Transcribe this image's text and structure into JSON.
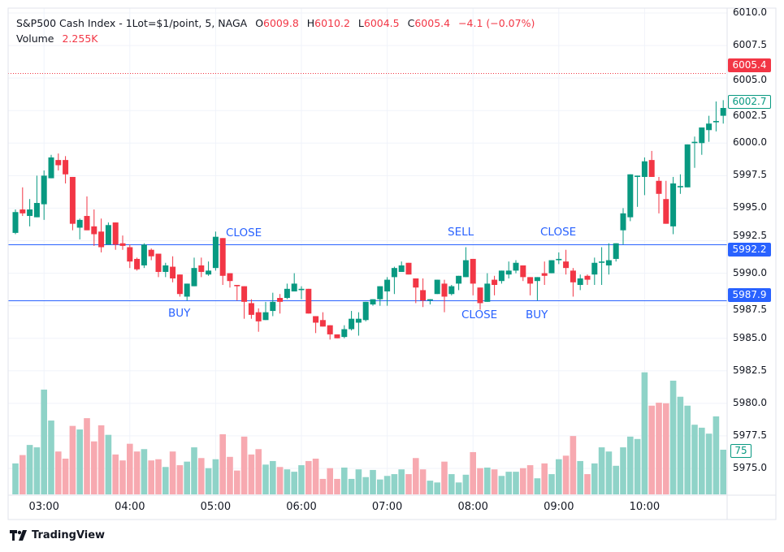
{
  "legend": {
    "symbol": "S&P500 Cash Index - 1Lot=$1/point, 5, NAGA",
    "o_label": "O",
    "o": "6009.8",
    "h_label": "H",
    "h": "6010.2",
    "l_label": "L",
    "l": "6004.5",
    "c_label": "C",
    "c": "6005.4",
    "change": "−4.1 (−0.07%)",
    "volume_label": "Volume",
    "volume": "2.255K"
  },
  "colors": {
    "up": "#089981",
    "down": "#f23645",
    "line": "#2962ff",
    "up_volume": "#8fd3c8",
    "down_volume": "#f7a9b0"
  },
  "annotations": [
    "CLOSE",
    "BUY",
    "SELL",
    "CLOSE",
    "BUY",
    "CLOSE"
  ],
  "price_labels": {
    "last": "6005.4",
    "current": "6002.7",
    "line_upper": "5992.2",
    "line_lower": "5987.9",
    "volume_last": "75"
  },
  "branding": {
    "logo": "TradingView"
  },
  "chart_data": {
    "type": "candlestick",
    "y_ticks": [
      "6010.0",
      "6007.5",
      "6005.0",
      "6002.5",
      "6000.0",
      "5997.5",
      "5995.0",
      "5992.5",
      "5990.0",
      "5987.5",
      "5985.0",
      "5982.5",
      "5980.0",
      "5977.5",
      "5975.0"
    ],
    "ylim": [
      5975.0,
      6010.0
    ],
    "x_ticks": [
      "03:00",
      "04:00",
      "05:00",
      "06:00",
      "07:00",
      "08:00",
      "09:00",
      "10:00"
    ],
    "grid": true,
    "horizontal_lines": [
      {
        "price": 6005.4,
        "style": "dotted",
        "color": "#f23645"
      },
      {
        "price": 5992.2,
        "style": "solid",
        "color": "#2962ff"
      },
      {
        "price": 5987.9,
        "style": "solid",
        "color": "#2962ff"
      }
    ],
    "ohlc": [
      [
        5993.1,
        5994.9,
        5993.0,
        5994.7
      ],
      [
        5994.9,
        5996.6,
        5994.4,
        5994.6
      ],
      [
        5994.4,
        5995.7,
        5993.6,
        5994.9
      ],
      [
        5994.3,
        5997.5,
        5994.3,
        5995.4
      ],
      [
        5995.3,
        5997.9,
        5994.1,
        5997.5
      ],
      [
        5997.3,
        5999.1,
        5997.3,
        5998.9
      ],
      [
        5998.7,
        5999.2,
        5997.9,
        5998.3
      ],
      [
        5998.7,
        5999.0,
        5996.9,
        5997.6
      ],
      [
        5997.4,
        5997.4,
        5993.3,
        5993.8
      ],
      [
        5993.5,
        5994.2,
        5992.6,
        5994.1
      ],
      [
        5994.4,
        5995.9,
        5993.3,
        5993.3
      ],
      [
        5993.6,
        5994.9,
        5992.1,
        5993.0
      ],
      [
        5993.2,
        5994.2,
        5991.6,
        5992.0
      ],
      [
        5992.2,
        5993.9,
        5992.2,
        5993.7
      ],
      [
        5993.9,
        5993.9,
        5991.8,
        5992.2
      ],
      [
        5992.3,
        5992.9,
        5991.8,
        5992.1
      ],
      [
        5992.0,
        5992.2,
        5990.4,
        5990.9
      ],
      [
        5991.1,
        5991.2,
        5990.2,
        5990.3
      ],
      [
        5990.6,
        5992.3,
        5990.4,
        5992.2
      ],
      [
        5991.8,
        5991.9,
        5991.0,
        5991.3
      ],
      [
        5991.5,
        5991.5,
        5989.7,
        5990.1
      ],
      [
        5990.1,
        5990.8,
        5989.7,
        5990.6
      ],
      [
        5990.5,
        5991.3,
        5989.3,
        5989.6
      ],
      [
        5989.9,
        5989.9,
        5988.2,
        5988.4
      ],
      [
        5988.2,
        5989.2,
        5987.9,
        5989.2
      ],
      [
        5989.0,
        5991.2,
        5989.0,
        5990.4
      ],
      [
        5990.6,
        5991.2,
        5989.7,
        5990.1
      ],
      [
        5989.9,
        5990.9,
        5989.8,
        5990.2
      ],
      [
        5990.4,
        5993.2,
        5990.2,
        5992.8
      ],
      [
        5992.7,
        5992.7,
        5989.1,
        5989.8
      ],
      [
        5990.0,
        5990.0,
        5988.9,
        5989.4
      ],
      [
        5989.1,
        5989.1,
        5987.9,
        5989.0
      ],
      [
        5989.0,
        5989.0,
        5986.5,
        5987.8
      ],
      [
        5987.7,
        5988.0,
        5986.5,
        5986.8
      ],
      [
        5987.0,
        5987.3,
        5985.5,
        5986.3
      ],
      [
        5986.4,
        5987.8,
        5986.4,
        5987.0
      ],
      [
        5987.1,
        5988.5,
        5986.7,
        5987.8
      ],
      [
        5988.1,
        5988.4,
        5986.9,
        5987.8
      ],
      [
        5988.1,
        5989.2,
        5988.0,
        5988.8
      ],
      [
        5988.6,
        5990.0,
        5988.6,
        5989.2
      ],
      [
        5988.7,
        5989.0,
        5988.0,
        5988.8
      ],
      [
        5988.8,
        5988.8,
        5986.9,
        5986.9
      ],
      [
        5986.7,
        5986.7,
        5985.4,
        5986.2
      ],
      [
        5986.4,
        5987.0,
        5985.9,
        5985.9
      ],
      [
        5986.0,
        5986.0,
        5984.9,
        5985.3
      ],
      [
        5985.3,
        5985.3,
        5985.0,
        5985.0
      ],
      [
        5985.1,
        5986.0,
        5985.0,
        5985.7
      ],
      [
        5985.7,
        5987.1,
        5985.6,
        5986.5
      ],
      [
        5986.2,
        5987.0,
        5985.2,
        5986.5
      ],
      [
        5986.4,
        5987.8,
        5986.3,
        5987.8
      ],
      [
        5987.6,
        5988.0,
        5987.5,
        5988.0
      ],
      [
        5988.0,
        5989.0,
        5987.5,
        5989.0
      ],
      [
        5988.6,
        5989.7,
        5987.5,
        5989.5
      ],
      [
        5989.7,
        5990.5,
        5988.4,
        5990.4
      ],
      [
        5990.1,
        5990.9,
        5990.1,
        5990.6
      ],
      [
        5990.8,
        5990.8,
        5989.9,
        5989.9
      ],
      [
        5989.6,
        5989.6,
        5987.7,
        5988.9
      ],
      [
        5988.7,
        5989.6,
        5987.4,
        5987.9
      ],
      [
        5987.9,
        5988.0,
        5987.6,
        5988.0
      ],
      [
        5988.4,
        5989.5,
        5988.4,
        5989.5
      ],
      [
        5989.2,
        5989.5,
        5987.0,
        5988.2
      ],
      [
        5988.4,
        5989.1,
        5988.3,
        5989.0
      ],
      [
        5989.2,
        5989.8,
        5988.7,
        5989.8
      ],
      [
        5989.7,
        5992.0,
        5989.7,
        5991.0
      ],
      [
        5991.1,
        5991.1,
        5988.3,
        5989.2
      ],
      [
        5988.9,
        5988.9,
        5987.2,
        5987.7
      ],
      [
        5987.8,
        5990.0,
        5987.8,
        5989.2
      ],
      [
        5989.5,
        5989.8,
        5988.3,
        5989.1
      ],
      [
        5989.4,
        5990.2,
        5989.2,
        5990.2
      ],
      [
        5989.9,
        5990.9,
        5989.6,
        5990.2
      ],
      [
        5990.2,
        5991.0,
        5990.0,
        5990.8
      ],
      [
        5990.6,
        5990.6,
        5989.4,
        5989.7
      ],
      [
        5989.7,
        5989.7,
        5988.3,
        5989.2
      ],
      [
        5989.4,
        5989.7,
        5987.9,
        5989.7
      ],
      [
        5990.0,
        5990.9,
        5989.1,
        5989.8
      ],
      [
        5990.0,
        5991.0,
        5990.0,
        5991.0
      ],
      [
        5991.0,
        5991.6,
        5990.7,
        5991.1
      ],
      [
        5990.9,
        5991.8,
        5989.9,
        5990.4
      ],
      [
        5990.2,
        5990.4,
        5988.2,
        5989.3
      ],
      [
        5989.1,
        5989.9,
        5988.7,
        5989.6
      ],
      [
        5989.8,
        5989.9,
        5989.1,
        5989.5
      ],
      [
        5989.9,
        5991.2,
        5989.1,
        5990.8
      ],
      [
        5990.8,
        5992.0,
        5989.1,
        5990.9
      ],
      [
        5990.6,
        5992.3,
        5989.9,
        5991.0
      ],
      [
        5991.1,
        5992.3,
        5990.9,
        5992.3
      ],
      [
        5993.3,
        5995.0,
        5992.2,
        5994.6
      ],
      [
        5994.3,
        5997.6,
        5994.0,
        5997.6
      ],
      [
        5997.4,
        5997.5,
        5995.1,
        5997.5
      ],
      [
        5997.4,
        5998.9,
        5996.0,
        5998.6
      ],
      [
        5998.7,
        5999.4,
        5997.4,
        5997.4
      ],
      [
        5997.1,
        5997.4,
        5994.6,
        5996.1
      ],
      [
        5995.7,
        5997.1,
        5993.8,
        5993.8
      ],
      [
        5993.6,
        5997.4,
        5993.0,
        5996.9
      ],
      [
        5996.6,
        5997.6,
        5996.1,
        5996.7
      ],
      [
        5996.6,
        5999.9,
        5996.6,
        5999.9
      ],
      [
        6000.0,
        6000.5,
        5998.1,
        6000.1
      ],
      [
        6000.0,
        6001.2,
        5999.1,
        6001.2
      ],
      [
        6001.0,
        6002.1,
        6000.1,
        6001.5
      ],
      [
        6001.6,
        6003.2,
        6000.9,
        6001.7
      ],
      [
        6002.1,
        6003.3,
        6001.5,
        6002.7
      ]
    ],
    "volume": [
      52,
      66,
      83,
      79,
      176,
      124,
      72,
      60,
      115,
      109,
      128,
      89,
      116,
      100,
      67,
      57,
      85,
      72,
      76,
      57,
      59,
      46,
      72,
      49,
      55,
      79,
      61,
      44,
      59,
      101,
      63,
      40,
      97,
      67,
      76,
      50,
      56,
      46,
      42,
      38,
      49,
      56,
      60,
      26,
      44,
      26,
      45,
      26,
      42,
      29,
      41,
      25,
      31,
      34,
      42,
      34,
      61,
      42,
      23,
      20,
      55,
      34,
      20,
      33,
      71,
      44,
      45,
      42,
      31,
      38,
      38,
      44,
      49,
      27,
      52,
      34,
      59,
      65,
      98,
      56,
      34,
      52,
      79,
      72,
      48,
      79,
      97,
      93,
      205,
      149,
      154,
      153,
      191,
      164,
      149,
      117,
      112,
      102,
      131,
      75
    ]
  }
}
